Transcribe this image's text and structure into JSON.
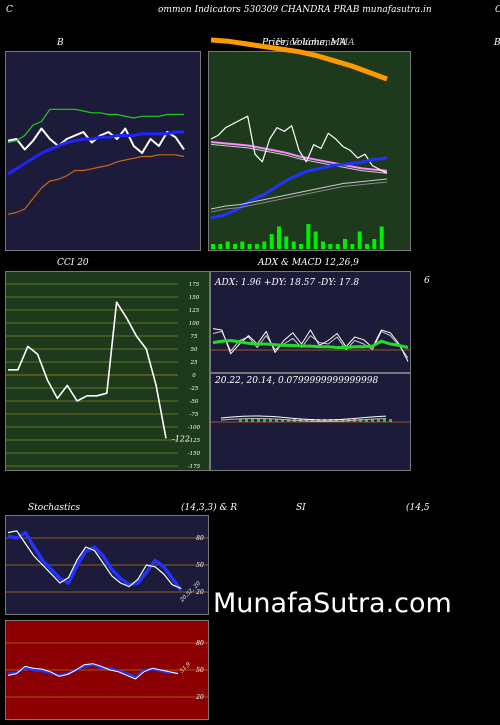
{
  "header": {
    "left_letter": "C",
    "title": "ommon  Indicators 530309 CHANDRA PRAB munafasutra.in",
    "right_letter": "C"
  },
  "labels": {
    "bb": "B",
    "price_volume": "Price, Volume, MA",
    "price_overlay": "Price  Volume  MA",
    "right_edge": "B",
    "cci": "CCI 20",
    "adx_macd": "ADX  & MACD 12,26,9",
    "adx_macd_right": "6",
    "adx_readout": "ADX: 1.96  +DY: 18.57 -DY: 17.8",
    "macd_readout": "20.22,  20.14,  0.0799999999999998",
    "stoch_left": "Stochastics",
    "stoch_right": "(14,3,3) & R",
    "rsi_left": "SI",
    "rsi_right": "(14,5"
  },
  "watermark": "MunafaSutra.com",
  "colors": {
    "panel_navy": "#1c1c3a",
    "panel_green": "#1d3a1d",
    "panel_red": "#8b0000",
    "grid_orange": "#b0701a",
    "grid_olive": "#7a8a20"
  },
  "chart_data": [
    {
      "type": "line",
      "id": "bollinger",
      "ylim": [
        0,
        100
      ],
      "series": [
        {
          "color": "#ffffff",
          "values": [
            55,
            56,
            50,
            55,
            62,
            56,
            52,
            56,
            58,
            60,
            54,
            58,
            60,
            56,
            62,
            52,
            48,
            56,
            52,
            60,
            57,
            50
          ]
        },
        {
          "color": "#2222ff",
          "values": [
            36,
            39,
            42,
            45,
            48,
            50,
            52,
            54,
            55,
            56,
            56,
            57,
            57,
            58,
            58,
            58,
            59,
            59,
            59,
            59,
            60,
            60
          ]
        },
        {
          "color": "#22cc22",
          "values": [
            54,
            55,
            58,
            64,
            66,
            73,
            73,
            73,
            73,
            72,
            71,
            71,
            70,
            70,
            69,
            68,
            69,
            69,
            69,
            70,
            70,
            70
          ]
        },
        {
          "color": "#cc6611",
          "values": [
            13,
            14,
            16,
            22,
            28,
            32,
            33,
            35,
            38,
            38,
            39,
            40,
            41,
            43,
            44,
            45,
            46,
            46,
            47,
            47,
            47,
            46
          ]
        }
      ]
    },
    {
      "type": "line",
      "id": "price_volume_ma",
      "ylim": [
        0,
        100
      ],
      "series": [
        {
          "color": "#ff9900",
          "values": [
            100,
            99,
            97,
            95,
            93,
            91,
            88,
            84,
            80,
            75,
            70
          ]
        },
        {
          "color": "#ff88ff",
          "values": [
            75,
            74,
            73,
            72,
            70,
            68,
            66,
            63,
            61,
            59,
            57,
            55,
            53,
            52,
            51
          ]
        },
        {
          "color": "#ffffff",
          "values": [
            70,
            72,
            76,
            78,
            80,
            82,
            62,
            58,
            70,
            76,
            74,
            77,
            64,
            58,
            67,
            65,
            73,
            70,
            66,
            64,
            60,
            62,
            56,
            54,
            52
          ]
        },
        {
          "color": "#2233ff",
          "values": [
            36,
            38,
            42,
            48,
            52,
            58,
            63,
            67,
            69,
            71,
            72,
            73,
            75,
            76
          ]
        },
        {
          "color": "#cccccc",
          "values": [
            42,
            44,
            45,
            47,
            49,
            51,
            53,
            55,
            57,
            59,
            60,
            61,
            62
          ]
        }
      ],
      "volume": [
        2,
        2,
        3,
        2,
        3,
        2,
        2,
        3,
        6,
        9,
        5,
        3,
        2,
        10,
        7,
        3,
        2,
        2,
        4,
        2,
        7,
        2,
        4,
        9
      ]
    },
    {
      "type": "line",
      "id": "cci",
      "title": "CCI 20",
      "ylim": [
        -175,
        175
      ],
      "yticks": [
        175,
        150,
        125,
        100,
        75,
        50,
        25,
        0,
        -25,
        -50,
        -75,
        -100,
        -125,
        -150,
        -175
      ],
      "last_value_label": "-122",
      "values": [
        10,
        10,
        55,
        40,
        -10,
        -45,
        -20,
        -50,
        -40,
        -40,
        -35,
        140,
        110,
        75,
        50,
        -20,
        -122
      ]
    },
    {
      "type": "line",
      "id": "adx",
      "adx": 1.96,
      "plus_di": 18.57,
      "minus_di": 17.8,
      "series": [
        {
          "color": "#22dd22",
          "values": [
            42,
            44,
            45,
            43,
            41,
            40,
            40,
            39,
            38,
            38,
            37,
            37,
            36,
            36,
            35,
            35,
            36,
            36,
            37,
            44,
            40,
            38,
            35
          ]
        },
        {
          "color": "#ffffff",
          "values": [
            62,
            60,
            26,
            40,
            52,
            40,
            58,
            28,
            45,
            56,
            40,
            60,
            38,
            45,
            55,
            36,
            50,
            46,
            35,
            60,
            56,
            40,
            15
          ]
        },
        {
          "color": "#cccccc",
          "values": [
            55,
            58,
            30,
            45,
            50,
            35,
            52,
            32,
            40,
            48,
            35,
            52,
            42,
            40,
            50,
            32,
            45,
            40,
            32,
            58,
            52,
            38,
            20
          ]
        }
      ]
    },
    {
      "type": "line",
      "id": "macd",
      "macd": 20.22,
      "signal": 20.14,
      "histogram": 0.0799999999999998
    },
    {
      "type": "line",
      "id": "stochastics",
      "ylim": [
        0,
        100
      ],
      "yticks": [
        80,
        50,
        20
      ],
      "last_value_label": "20.52, 20",
      "series": [
        {
          "color": "#2233ff",
          "values": [
            82,
            80,
            86,
            70,
            55,
            45,
            35,
            30,
            50,
            65,
            70,
            60,
            45,
            35,
            28,
            30,
            42,
            55,
            48,
            35,
            22
          ]
        },
        {
          "color": "#ffffff",
          "values": [
            86,
            88,
            74,
            60,
            50,
            40,
            30,
            36,
            56,
            70,
            66,
            52,
            38,
            30,
            26,
            34,
            50,
            48,
            40,
            28,
            24
          ]
        }
      ]
    },
    {
      "type": "line",
      "id": "rsi",
      "ylim": [
        0,
        100
      ],
      "yticks": [
        80,
        50,
        20
      ],
      "last_value_label": "51.9",
      "series": [
        {
          "color": "#2233ff",
          "values": [
            46,
            47,
            52,
            50,
            49,
            47,
            44,
            46,
            50,
            54,
            56,
            52,
            52,
            49,
            46,
            42,
            50,
            51,
            49,
            47,
            47
          ]
        },
        {
          "color": "#ffffff",
          "values": [
            44,
            46,
            54,
            52,
            51,
            48,
            43,
            45,
            50,
            56,
            57,
            54,
            50,
            48,
            44,
            40,
            48,
            52,
            50,
            48,
            46
          ]
        }
      ]
    }
  ]
}
